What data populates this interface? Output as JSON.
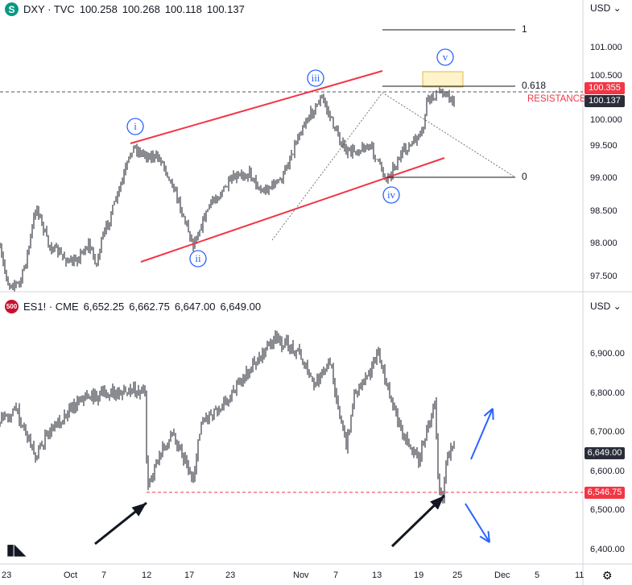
{
  "dxy": {
    "symbol": "DXY · TVC",
    "open": "100.258",
    "high": "100.268",
    "low": "100.118",
    "close": "100.137",
    "badge": "S",
    "currency": "USD ⌄",
    "price_ticks": [
      "101.000",
      "100.500",
      "100.000",
      "99.500",
      "99.000",
      "98.500",
      "98.000",
      "97.500"
    ],
    "resistance_price": "100.355",
    "last_price": "100.137",
    "resistance_label": "RESISTANCE",
    "fib_labels": [
      "1",
      "0.618",
      "0"
    ],
    "wave_labels": [
      "i",
      "ii",
      "iii",
      "iv",
      "v"
    ]
  },
  "es": {
    "symbol": "ES1! · CME",
    "open": "6,652.25",
    "high": "6,662.75",
    "low": "6,647.00",
    "close": "6,649.00",
    "badge": "500",
    "currency": "USD ⌄",
    "price_ticks": [
      "6,900.00",
      "6,800.00",
      "6,700.00",
      "6,600.00",
      "6,500.00",
      "6,400.00"
    ],
    "last_price": "6,649.00",
    "support_price": "6,546.75"
  },
  "time_axis": [
    "23",
    "Oct",
    "7",
    "12",
    "17",
    "23",
    "Nov",
    "7",
    "13",
    "19",
    "25",
    "Dec",
    "5",
    "11"
  ],
  "colors": {
    "red": "#f23645",
    "blue": "#2962ff",
    "dark": "#131722",
    "zone": "#fff3cc"
  },
  "chart_data": [
    {
      "type": "line",
      "title": "DXY · TVC",
      "ylim": [
        97.3,
        101.4
      ],
      "x": [
        0,
        10,
        25,
        35,
        45,
        60,
        90,
        110,
        120,
        125,
        150,
        165,
        175,
        200,
        215,
        240,
        260,
        290,
        310,
        325,
        350,
        375,
        400,
        415,
        430,
        460,
        480,
        500,
        525,
        530,
        550,
        565
      ],
      "y": [
        97.9,
        97.4,
        97.4,
        97.9,
        98.6,
        98.0,
        97.7,
        98.0,
        97.7,
        98.0,
        98.9,
        99.5,
        99.4,
        99.3,
        98.9,
        98.0,
        98.6,
        99.0,
        99.1,
        98.8,
        99.0,
        99.8,
        100.25,
        99.8,
        99.4,
        99.5,
        99.0,
        99.4,
        99.7,
        100.2,
        100.35,
        100.15
      ]
    },
    {
      "type": "line",
      "title": "ES1! · CME",
      "ylim": [
        6380,
        6960
      ],
      "x": [
        0,
        20,
        45,
        60,
        100,
        140,
        180,
        183,
        200,
        215,
        240,
        250,
        280,
        310,
        340,
        370,
        390,
        410,
        430,
        440,
        470,
        480,
        500,
        520,
        535,
        540,
        545,
        550,
        555,
        565
      ],
      "y": [
        6730,
        6760,
        6640,
        6700,
        6790,
        6800,
        6810,
        6560,
        6650,
        6700,
        6580,
        6730,
        6780,
        6860,
        6940,
        6910,
        6820,
        6880,
        6660,
        6800,
        6900,
        6820,
        6700,
        6630,
        6740,
        6790,
        6560,
        6540,
        6650,
        6660
      ]
    }
  ]
}
